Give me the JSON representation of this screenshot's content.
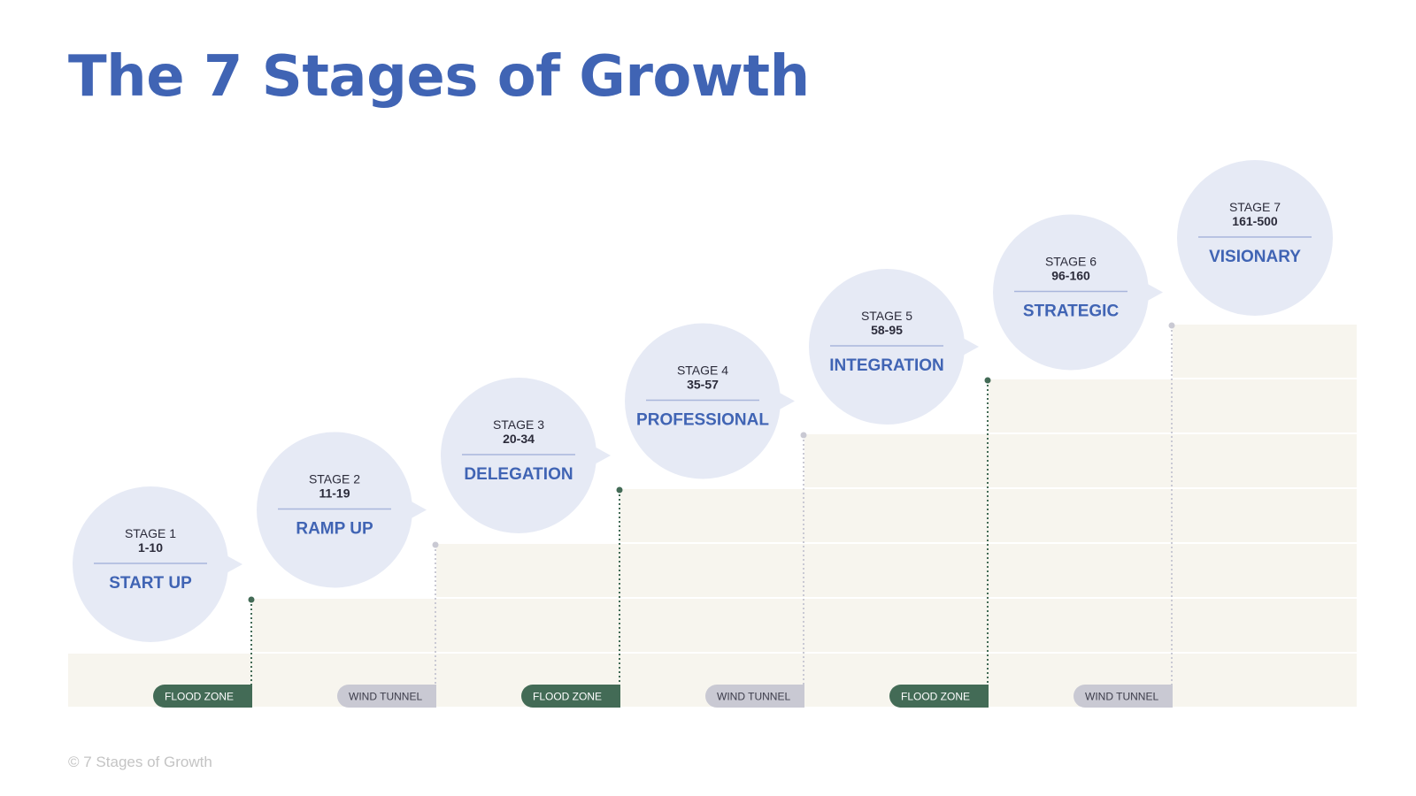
{
  "title": "The 7 Stages of Growth",
  "footer": "© 7 Stages of Growth",
  "colors": {
    "title": "#4064b4",
    "bubble": "#e6eaf5",
    "step_fill": "#f7f5ee",
    "flood_zone": "#436b56",
    "wind_tunnel": "#c9c9d3",
    "stage_name": "#4064b4",
    "stage_text": "#2b2b3a"
  },
  "stages": [
    {
      "stage": "STAGE 1",
      "range": "1-10",
      "name": "START UP"
    },
    {
      "stage": "STAGE 2",
      "range": "11-19",
      "name": "RAMP UP"
    },
    {
      "stage": "STAGE 3",
      "range": "20-34",
      "name": "DELEGATION"
    },
    {
      "stage": "STAGE 4",
      "range": "35-57",
      "name": "PROFESSIONAL"
    },
    {
      "stage": "STAGE 5",
      "range": "58-95",
      "name": "INTEGRATION"
    },
    {
      "stage": "STAGE 6",
      "range": "96-160",
      "name": "STRATEGIC"
    },
    {
      "stage": "STAGE 7",
      "range": "161-500",
      "name": "VISIONARY"
    }
  ],
  "zones": [
    {
      "label": "FLOOD ZONE",
      "kind": "flood"
    },
    {
      "label": "WIND TUNNEL",
      "kind": "wind"
    },
    {
      "label": "FLOOD ZONE",
      "kind": "flood"
    },
    {
      "label": "WIND TUNNEL",
      "kind": "wind"
    },
    {
      "label": "FLOOD ZONE",
      "kind": "flood"
    },
    {
      "label": "WIND TUNNEL",
      "kind": "wind"
    }
  ]
}
